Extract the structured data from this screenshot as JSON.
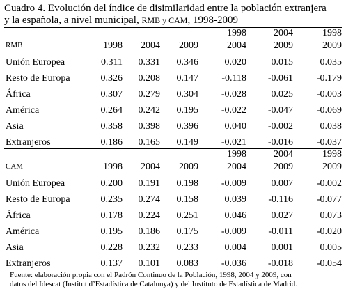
{
  "caption": {
    "line1": "Cuadro 4. Evolución del índice de disimilaridad entre la población extranjera",
    "line2_a": "y la española, a nivel municipal, ",
    "line2_b": "RMB y CAM",
    "line2_c": ", 1998-2009"
  },
  "sections": [
    {
      "region": "RMB",
      "years": [
        "1998",
        "2004",
        "2009"
      ],
      "diffs": [
        {
          "top": "1998",
          "bottom": "2004"
        },
        {
          "top": "2004",
          "bottom": "2009"
        },
        {
          "top": "1998",
          "bottom": "2009"
        }
      ],
      "rows": [
        {
          "label": "Unión Europea",
          "values": [
            "0.311",
            "0.331",
            "0.346",
            "0.020",
            "0.015",
            "0.035"
          ]
        },
        {
          "label": "Resto de Europa",
          "values": [
            "0.326",
            "0.208",
            "0.147",
            "-0.118",
            "-0.061",
            "-0.179"
          ]
        },
        {
          "label": "África",
          "values": [
            "0.307",
            "0.279",
            "0.304",
            "-0.028",
            "0.025",
            "-0.003"
          ]
        },
        {
          "label": "América",
          "values": [
            "0.264",
            "0.242",
            "0.195",
            "-0.022",
            "-0.047",
            "-0.069"
          ]
        },
        {
          "label": "Asia",
          "values": [
            "0.358",
            "0.398",
            "0.396",
            "0.040",
            "-0.002",
            "0.038"
          ]
        },
        {
          "label": "Extranjeros",
          "values": [
            "0.186",
            "0.165",
            "0.149",
            "-0.021",
            "-0.016",
            "-0.037"
          ]
        }
      ]
    },
    {
      "region": "CAM",
      "years": [
        "1998",
        "2004",
        "2009"
      ],
      "diffs": [
        {
          "top": "1998",
          "bottom": "2004"
        },
        {
          "top": "2004",
          "bottom": "2009"
        },
        {
          "top": "1998",
          "bottom": "2009"
        }
      ],
      "rows": [
        {
          "label": "Unión Europea",
          "values": [
            "0.200",
            "0.191",
            "0.198",
            "-0.009",
            "0.007",
            "-0.002"
          ]
        },
        {
          "label": "Resto de Europa",
          "values": [
            "0.235",
            "0.274",
            "0.158",
            "0.039",
            "-0.116",
            "-0.077"
          ]
        },
        {
          "label": "África",
          "values": [
            "0.178",
            "0.224",
            "0.251",
            "0.046",
            "0.027",
            "0.073"
          ]
        },
        {
          "label": "América",
          "values": [
            "0.195",
            "0.186",
            "0.175",
            "-0.009",
            "-0.011",
            "-0.020"
          ]
        },
        {
          "label": "Asia",
          "values": [
            "0.228",
            "0.232",
            "0.233",
            "0.004",
            "0.001",
            "0.005"
          ]
        },
        {
          "label": "Extranjeros",
          "values": [
            "0.137",
            "0.101",
            "0.083",
            "-0.036",
            "-0.018",
            "-0.054"
          ]
        }
      ]
    }
  ],
  "source": {
    "line1": "Fuente: elaboración propia con el Padrón Continuo de la Población, 1998, 2004 y 2009, con",
    "line2": "datos del Idescat (Institut d’Estadística de Catalunya) y del Instituto de Estadística de Madrid."
  }
}
